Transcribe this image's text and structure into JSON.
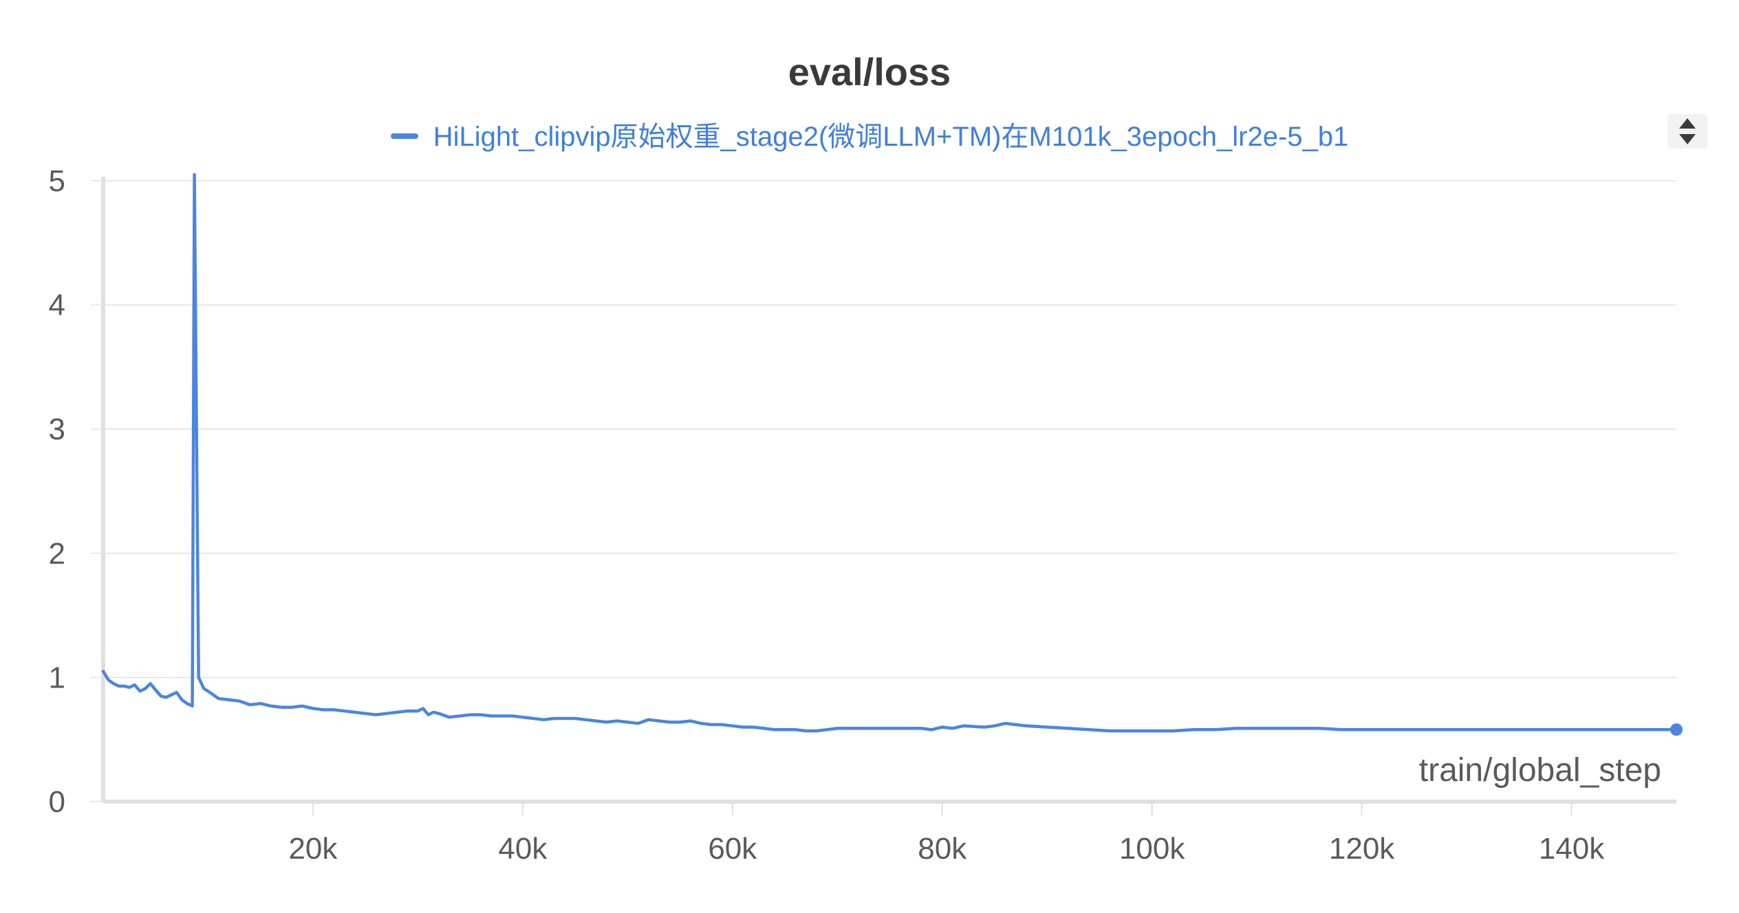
{
  "chart_data": {
    "type": "line",
    "title": "eval/loss",
    "xlabel": "train/global_step",
    "ylabel": "",
    "xlim": [
      0,
      150000
    ],
    "ylim": [
      0,
      5
    ],
    "x_ticks": [
      20000,
      40000,
      60000,
      80000,
      100000,
      120000,
      140000
    ],
    "x_tick_labels": [
      "20k",
      "40k",
      "60k",
      "80k",
      "100k",
      "120k",
      "140k"
    ],
    "y_ticks": [
      0,
      1,
      2,
      3,
      4,
      5
    ],
    "y_tick_labels": [
      "0",
      "1",
      "2",
      "3",
      "4",
      "5"
    ],
    "grid": true,
    "legend_position": "top-center",
    "colors": {
      "series": "#4a86e0",
      "grid": "#e8e8e8",
      "axis": "#e0e0e0",
      "text": "#5a5a5a"
    },
    "series": [
      {
        "name": "HiLight_clipvip原始权重_stage2(微调LLM+TM)在M101k_3epoch_lr2e-5_b1",
        "x": [
          0,
          500,
          1000,
          1500,
          2000,
          2500,
          3000,
          3500,
          4000,
          4500,
          5000,
          5500,
          6000,
          6500,
          7000,
          7500,
          8000,
          8500,
          8700,
          9100,
          9600,
          10000,
          10500,
          11000,
          12000,
          13000,
          14000,
          15000,
          16000,
          17000,
          18000,
          19000,
          20000,
          21000,
          22000,
          23000,
          24000,
          25000,
          26000,
          27000,
          28000,
          29000,
          30000,
          30500,
          31000,
          31500,
          32000,
          33000,
          34000,
          35000,
          36000,
          37000,
          38000,
          39000,
          40000,
          41000,
          42000,
          43000,
          44000,
          45000,
          46000,
          47000,
          48000,
          49000,
          50000,
          51000,
          52000,
          53000,
          54000,
          55000,
          56000,
          57000,
          58000,
          59000,
          60000,
          61000,
          62000,
          63000,
          64000,
          65000,
          66000,
          67000,
          68000,
          69000,
          70000,
          72000,
          74000,
          76000,
          78000,
          79000,
          80000,
          81000,
          82000,
          84000,
          85000,
          86000,
          87000,
          88000,
          90000,
          92000,
          94000,
          96000,
          98000,
          100000,
          102000,
          104000,
          106000,
          108000,
          110000,
          112000,
          114000,
          116000,
          118000,
          120000,
          122000,
          124000,
          126000,
          128000,
          130000,
          132000,
          134000,
          136000,
          138000,
          140000,
          142000,
          144000,
          146000,
          148000,
          150000
        ],
        "y": [
          1.05,
          0.98,
          0.95,
          0.93,
          0.93,
          0.92,
          0.94,
          0.89,
          0.91,
          0.95,
          0.9,
          0.85,
          0.84,
          0.86,
          0.88,
          0.82,
          0.79,
          0.77,
          5.05,
          1.0,
          0.91,
          0.89,
          0.86,
          0.83,
          0.82,
          0.81,
          0.78,
          0.79,
          0.77,
          0.76,
          0.76,
          0.77,
          0.75,
          0.74,
          0.74,
          0.73,
          0.72,
          0.71,
          0.7,
          0.71,
          0.72,
          0.73,
          0.73,
          0.75,
          0.7,
          0.72,
          0.71,
          0.68,
          0.69,
          0.7,
          0.7,
          0.69,
          0.69,
          0.69,
          0.68,
          0.67,
          0.66,
          0.67,
          0.67,
          0.67,
          0.66,
          0.65,
          0.64,
          0.65,
          0.64,
          0.63,
          0.66,
          0.65,
          0.64,
          0.64,
          0.65,
          0.63,
          0.62,
          0.62,
          0.61,
          0.6,
          0.6,
          0.59,
          0.58,
          0.58,
          0.58,
          0.57,
          0.57,
          0.58,
          0.59,
          0.59,
          0.59,
          0.59,
          0.59,
          0.58,
          0.6,
          0.59,
          0.61,
          0.6,
          0.61,
          0.63,
          0.62,
          0.61,
          0.6,
          0.59,
          0.58,
          0.57,
          0.57,
          0.57,
          0.57,
          0.58,
          0.58,
          0.59,
          0.59,
          0.59,
          0.59,
          0.59,
          0.58,
          0.58,
          0.58,
          0.58,
          0.58,
          0.58,
          0.58,
          0.58,
          0.58,
          0.58,
          0.58,
          0.58,
          0.58,
          0.58,
          0.58,
          0.58,
          0.58
        ]
      }
    ]
  },
  "ui": {
    "legend_scroll_icon": "sort-up-down-icon"
  }
}
